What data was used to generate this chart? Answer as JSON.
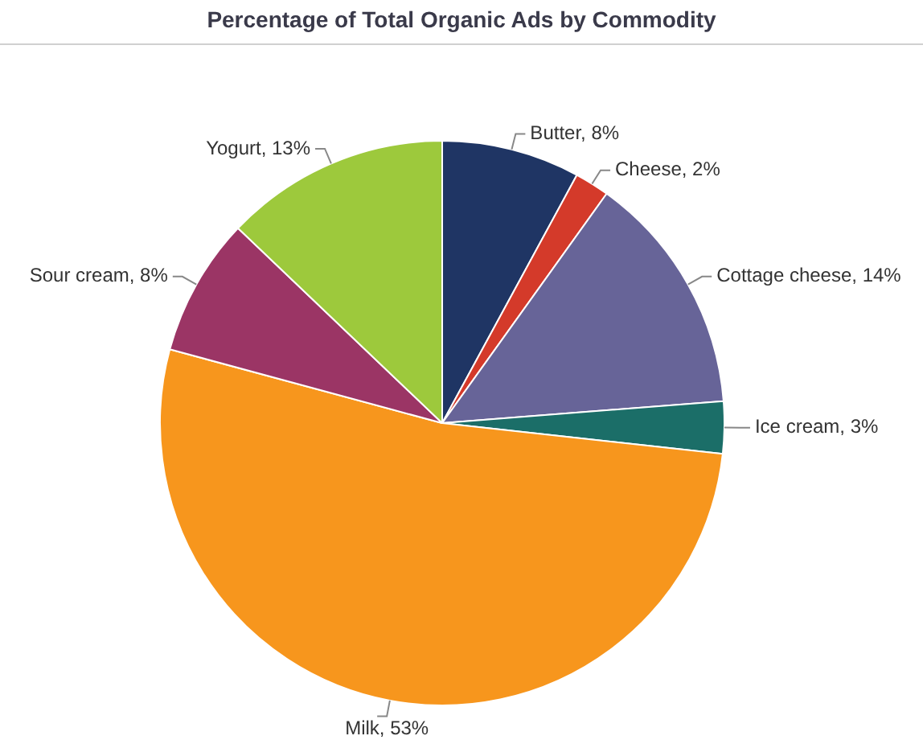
{
  "chart_data": {
    "type": "pie",
    "title": "Percentage of Total Organic Ads by Commodity",
    "categories": [
      "Butter",
      "Cheese",
      "Cottage cheese",
      "Ice cream",
      "Milk",
      "Sour cream",
      "Yogurt"
    ],
    "values": [
      8,
      2,
      14,
      3,
      53,
      8,
      13
    ],
    "value_labels": [
      "8%",
      "2%",
      "14%",
      "3%",
      "53%",
      "8%",
      "13%"
    ],
    "colors": [
      "#1f3564",
      "#d43a2a",
      "#676498",
      "#1b6e68",
      "#f7961d",
      "#9b3565",
      "#9dc93c"
    ],
    "legend": false
  }
}
